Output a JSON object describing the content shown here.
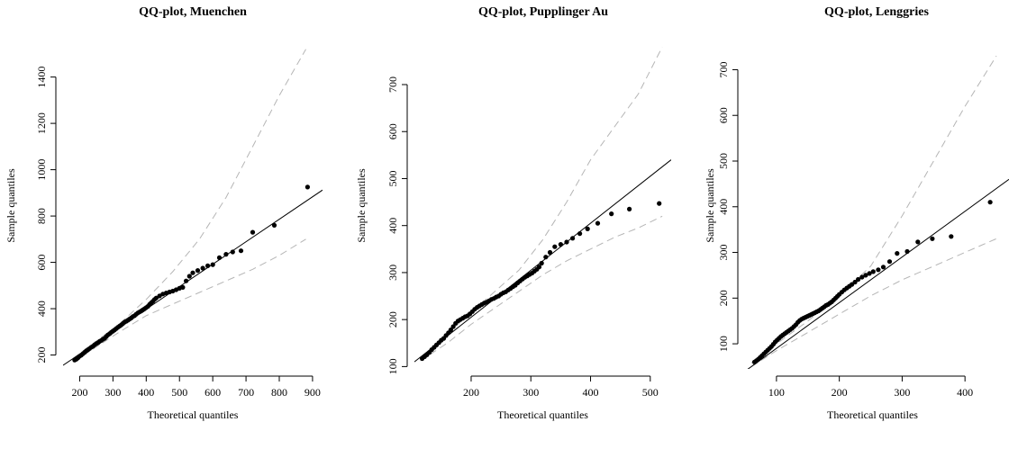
{
  "colors": {
    "points": "#000000",
    "ref_line": "#000000",
    "band": "#b5b5b5",
    "axis": "#000000"
  },
  "chart_data": [
    {
      "type": "scatter",
      "title": "QQ-plot, Muenchen",
      "xlabel": "Theoretical quantiles",
      "ylabel": "Sample quantiles",
      "xlim": [
        150,
        930
      ],
      "ylim": [
        140,
        1550
      ],
      "xticks": [
        200,
        300,
        400,
        500,
        600,
        700,
        800,
        900
      ],
      "yticks": [
        200,
        400,
        600,
        800,
        1000,
        1200,
        1400
      ],
      "ref_line": {
        "slope": 0.97,
        "intercept": 10
      },
      "band_upper": [
        [
          180,
          185
        ],
        [
          250,
          260
        ],
        [
          320,
          335
        ],
        [
          400,
          440
        ],
        [
          480,
          560
        ],
        [
          560,
          700
        ],
        [
          640,
          880
        ],
        [
          720,
          1100
        ],
        [
          800,
          1320
        ],
        [
          880,
          1520
        ]
      ],
      "band_lower": [
        [
          180,
          170
        ],
        [
          250,
          235
        ],
        [
          320,
          300
        ],
        [
          400,
          370
        ],
        [
          480,
          420
        ],
        [
          560,
          470
        ],
        [
          640,
          520
        ],
        [
          720,
          570
        ],
        [
          800,
          630
        ],
        [
          880,
          700
        ]
      ],
      "points": {
        "x": [
          185,
          190,
          195,
          200,
          205,
          210,
          215,
          220,
          225,
          230,
          235,
          240,
          245,
          250,
          255,
          260,
          265,
          270,
          275,
          280,
          285,
          290,
          295,
          300,
          305,
          310,
          315,
          320,
          325,
          330,
          335,
          340,
          345,
          350,
          355,
          360,
          365,
          370,
          375,
          380,
          385,
          390,
          395,
          400,
          405,
          410,
          415,
          420,
          425,
          430,
          440,
          450,
          460,
          470,
          480,
          490,
          500,
          510,
          520,
          530,
          540,
          555,
          570,
          585,
          600,
          620,
          640,
          660,
          685,
          720,
          785,
          885
        ],
        "y": [
          178,
          182,
          188,
          195,
          200,
          206,
          212,
          218,
          223,
          228,
          234,
          238,
          244,
          249,
          253,
          259,
          263,
          268,
          272,
          280,
          287,
          292,
          298,
          303,
          308,
          314,
          320,
          325,
          330,
          336,
          342,
          346,
          350,
          355,
          360,
          366,
          370,
          376,
          382,
          386,
          390,
          395,
          400,
          405,
          410,
          418,
          425,
          432,
          440,
          446,
          455,
          463,
          468,
          472,
          476,
          482,
          488,
          492,
          520,
          540,
          555,
          565,
          575,
          585,
          590,
          620,
          635,
          645,
          650,
          730,
          760,
          925
        ]
      }
    },
    {
      "type": "scatter",
      "title": "QQ-plot, Pupplinger Au",
      "xlabel": "Theoretical quantiles",
      "ylabel": "Sample quantiles",
      "xlim": [
        105,
        535
      ],
      "ylim": [
        95,
        790
      ],
      "xticks": [
        200,
        300,
        400,
        500
      ],
      "yticks": [
        100,
        200,
        300,
        400,
        500,
        600,
        700
      ],
      "ref_line": {
        "slope": 1.0,
        "intercept": 5
      },
      "band_upper": [
        [
          115,
          118
        ],
        [
          160,
          170
        ],
        [
          200,
          215
        ],
        [
          240,
          260
        ],
        [
          280,
          305
        ],
        [
          320,
          370
        ],
        [
          360,
          450
        ],
        [
          400,
          540
        ],
        [
          440,
          610
        ],
        [
          480,
          680
        ],
        [
          520,
          780
        ]
      ],
      "band_lower": [
        [
          115,
          112
        ],
        [
          160,
          150
        ],
        [
          200,
          190
        ],
        [
          240,
          225
        ],
        [
          280,
          260
        ],
        [
          320,
          295
        ],
        [
          360,
          325
        ],
        [
          400,
          350
        ],
        [
          440,
          375
        ],
        [
          480,
          395
        ],
        [
          520,
          420
        ]
      ],
      "points": {
        "x": [
          118,
          122,
          126,
          130,
          134,
          138,
          142,
          146,
          150,
          154,
          158,
          162,
          166,
          170,
          174,
          178,
          182,
          186,
          190,
          194,
          198,
          202,
          206,
          210,
          214,
          218,
          222,
          226,
          230,
          234,
          238,
          242,
          246,
          250,
          254,
          258,
          262,
          266,
          270,
          274,
          278,
          282,
          286,
          290,
          294,
          298,
          302,
          306,
          310,
          314,
          318,
          325,
          332,
          340,
          350,
          360,
          370,
          382,
          395,
          412,
          435,
          465,
          515
        ],
        "y": [
          117,
          121,
          125,
          130,
          136,
          141,
          146,
          151,
          156,
          160,
          166,
          172,
          178,
          185,
          192,
          197,
          200,
          203,
          206,
          208,
          212,
          217,
          222,
          226,
          229,
          232,
          235,
          237,
          240,
          243,
          245,
          248,
          250,
          254,
          257,
          259,
          263,
          266,
          270,
          273,
          278,
          282,
          286,
          290,
          293,
          296,
          299,
          303,
          307,
          312,
          320,
          333,
          343,
          355,
          360,
          365,
          373,
          383,
          393,
          405,
          425,
          435,
          447
        ]
      }
    },
    {
      "type": "scatter",
      "title": "QQ-plot, Lenggries",
      "xlabel": "Theoretical quantiles",
      "ylabel": "Sample quantiles",
      "xlim": [
        50,
        470
      ],
      "ylim": [
        45,
        760
      ],
      "xticks": [
        100,
        200,
        300,
        400
      ],
      "yticks": [
        100,
        200,
        300,
        400,
        500,
        600,
        700
      ],
      "ref_line": {
        "slope": 1.0,
        "intercept": -10
      },
      "band_upper": [
        [
          60,
          58
        ],
        [
          100,
          100
        ],
        [
          150,
          150
        ],
        [
          200,
          205
        ],
        [
          250,
          270
        ],
        [
          300,
          380
        ],
        [
          350,
          500
        ],
        [
          400,
          620
        ],
        [
          450,
          730
        ]
      ],
      "band_lower": [
        [
          60,
          50
        ],
        [
          100,
          85
        ],
        [
          150,
          125
        ],
        [
          200,
          165
        ],
        [
          250,
          205
        ],
        [
          300,
          240
        ],
        [
          350,
          270
        ],
        [
          400,
          300
        ],
        [
          450,
          330
        ]
      ],
      "points": {
        "x": [
          65,
          68,
          71,
          74,
          77,
          80,
          83,
          86,
          89,
          92,
          95,
          98,
          101,
          104,
          107,
          110,
          113,
          116,
          119,
          122,
          125,
          128,
          131,
          134,
          137,
          140,
          143,
          146,
          149,
          152,
          155,
          158,
          161,
          164,
          167,
          170,
          173,
          176,
          179,
          182,
          185,
          188,
          191,
          194,
          197,
          200,
          204,
          208,
          212,
          216,
          220,
          225,
          230,
          236,
          242,
          248,
          254,
          262,
          270,
          280,
          292,
          308,
          325,
          348,
          378,
          440
        ],
        "y": [
          60,
          63,
          66,
          70,
          74,
          78,
          82,
          86,
          90,
          94,
          99,
          104,
          108,
          112,
          116,
          119,
          122,
          125,
          128,
          131,
          134,
          138,
          142,
          147,
          151,
          154,
          156,
          158,
          160,
          162,
          164,
          166,
          168,
          170,
          172,
          175,
          178,
          181,
          184,
          186,
          189,
          192,
          196,
          200,
          204,
          208,
          213,
          218,
          222,
          226,
          230,
          235,
          241,
          246,
          250,
          254,
          258,
          262,
          268,
          280,
          298,
          302,
          323,
          330,
          335,
          410
        ]
      }
    }
  ]
}
